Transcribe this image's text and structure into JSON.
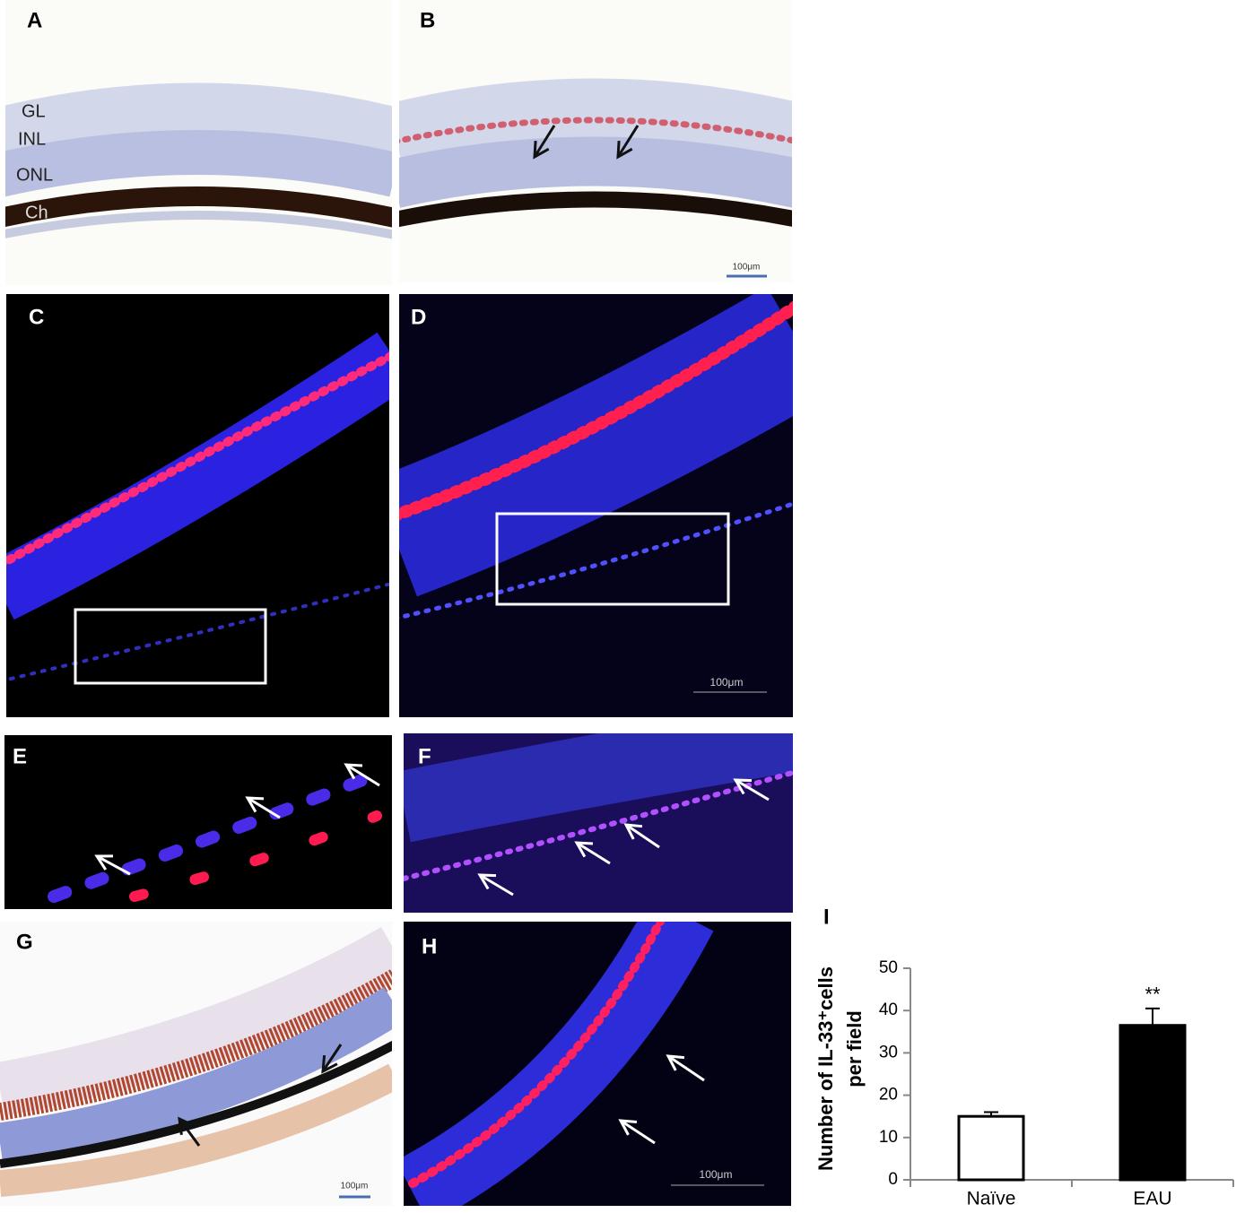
{
  "panels": [
    {
      "label": "A",
      "annotations": [
        "GL",
        "INL",
        "ONL",
        "Ch"
      ]
    },
    {
      "label": "B",
      "scale_bar": "100μm"
    },
    {
      "label": "C"
    },
    {
      "label": "D",
      "scale_bar": "100μm"
    },
    {
      "label": "E"
    },
    {
      "label": "F"
    },
    {
      "label": "G",
      "scale_bar": "100μm"
    },
    {
      "label": "H",
      "scale_bar": "100μm"
    }
  ],
  "chart_data": {
    "type": "bar",
    "panel_label": "I",
    "ylabel": [
      "Number of IL-33⁺cells",
      "per field"
    ],
    "categories": [
      "Naïve",
      "EAU"
    ],
    "values": [
      15,
      36.5
    ],
    "errors": [
      1,
      4
    ],
    "colors": [
      "#ffffff",
      "#000000"
    ],
    "annotations": [
      null,
      "**"
    ],
    "ylim": [
      0,
      50
    ],
    "yticks": [
      0,
      10,
      20,
      30,
      40,
      50
    ],
    "grid": false
  }
}
